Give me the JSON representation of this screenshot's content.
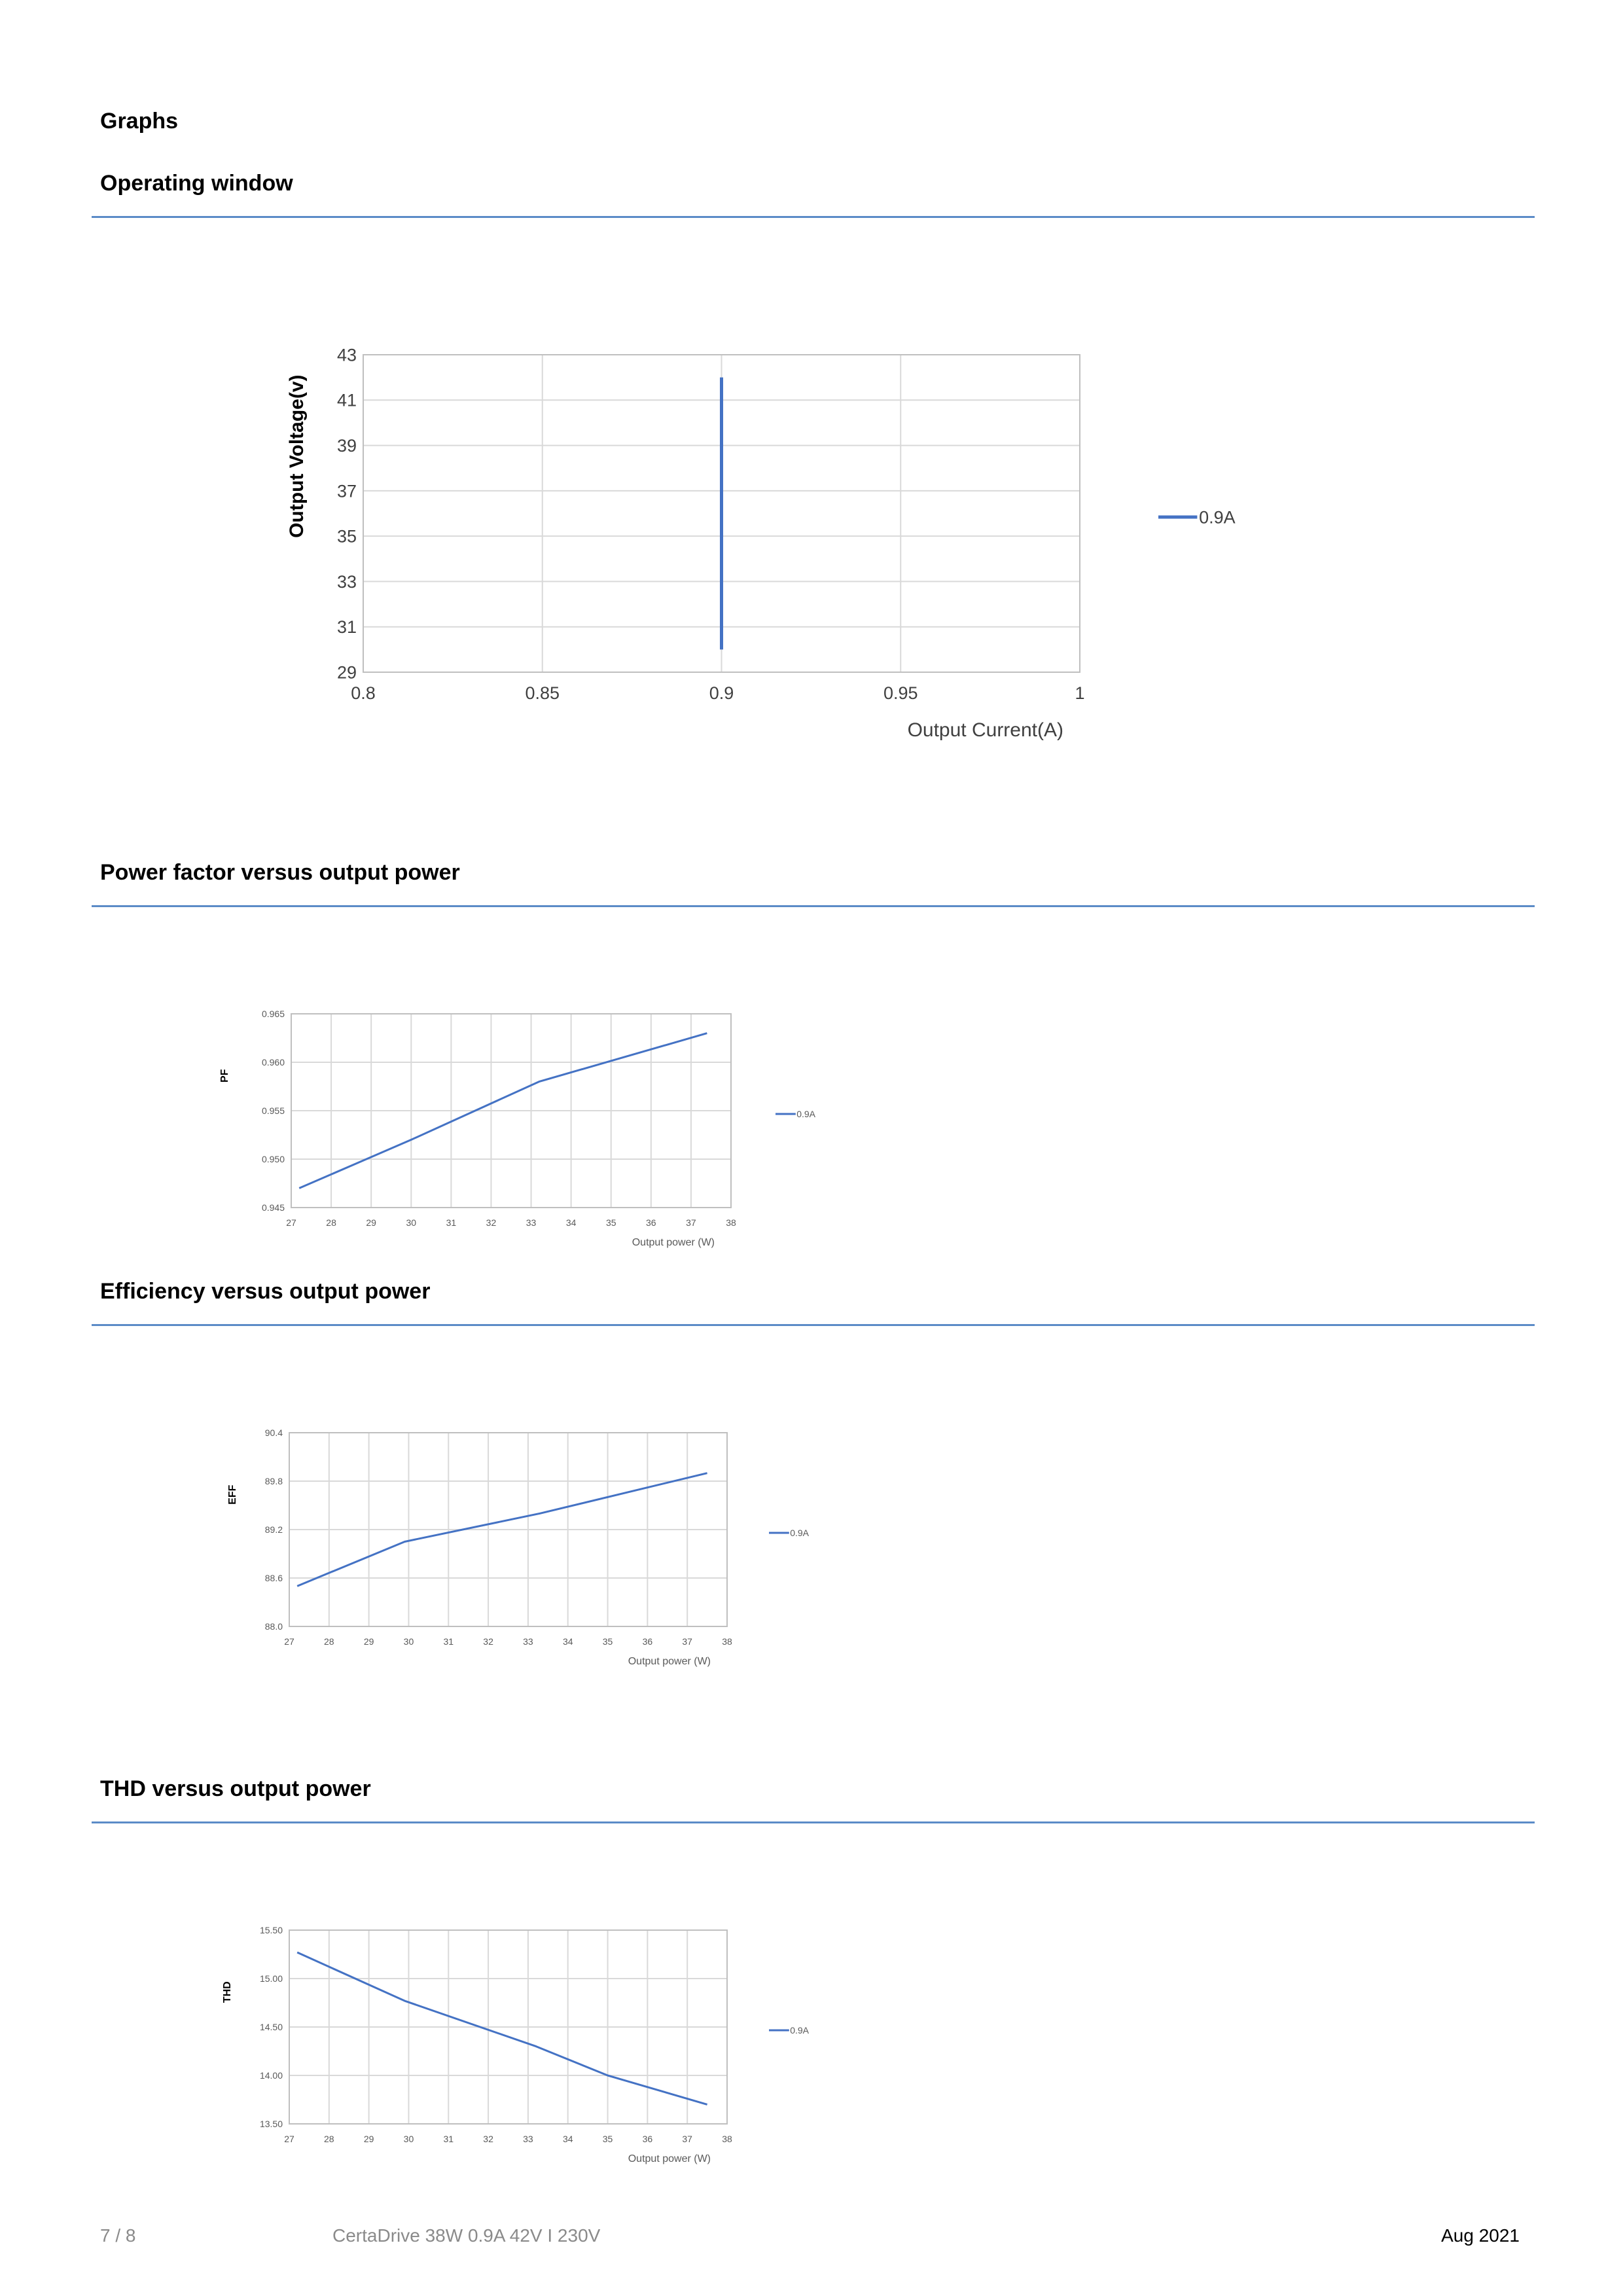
{
  "headings": {
    "graphs": "Graphs",
    "operating_window": "Operating window",
    "power_factor": "Power factor versus output power",
    "efficiency": "Efficiency versus output power",
    "thd": "THD versus output power"
  },
  "footer": {
    "page": "7 / 8",
    "product": "CertaDrive 38W 0.9A 42V I 230V",
    "date": "Aug 2021"
  },
  "colors": {
    "series": "#4472c4",
    "grid": "#d9d9d9",
    "rule": "#5b8bc7"
  },
  "chart_data": [
    {
      "id": "operating",
      "type": "line",
      "xlabel": "Output Current(A)",
      "ylabel": "Output Voltage(v)",
      "xlim": [
        0.8,
        1
      ],
      "ylim": [
        29,
        43
      ],
      "x_ticks": [
        "0.8",
        "0.85",
        "0.9",
        "0.95",
        "1"
      ],
      "x_tick_values": [
        0.8,
        0.85,
        0.9,
        0.95,
        1
      ],
      "y_ticks": [
        "29",
        "31",
        "33",
        "35",
        "37",
        "39",
        "41",
        "43"
      ],
      "y_tick_values": [
        29,
        31,
        33,
        35,
        37,
        39,
        41,
        43
      ],
      "grid": true,
      "legend_position": "right",
      "series": [
        {
          "name": "0.9A",
          "x": [
            0.9,
            0.9
          ],
          "y": [
            30,
            42
          ]
        }
      ]
    },
    {
      "id": "pf",
      "type": "line",
      "xlabel": "Output power (W)",
      "ylabel": "PF",
      "xlim": [
        27,
        38
      ],
      "ylim": [
        0.945,
        0.965
      ],
      "x_ticks": [
        "27",
        "28",
        "29",
        "30",
        "31",
        "32",
        "33",
        "34",
        "35",
        "36",
        "37",
        "38"
      ],
      "x_tick_values": [
        27,
        28,
        29,
        30,
        31,
        32,
        33,
        34,
        35,
        36,
        37,
        38
      ],
      "y_ticks": [
        "0.945",
        "0.950",
        "0.955",
        "0.960",
        "0.965"
      ],
      "y_tick_values": [
        0.945,
        0.95,
        0.955,
        0.96,
        0.965
      ],
      "grid": true,
      "legend_position": "right",
      "series": [
        {
          "name": "0.9A",
          "x": [
            27.2,
            30.0,
            33.2,
            37.4
          ],
          "y": [
            0.947,
            0.952,
            0.958,
            0.963
          ]
        }
      ]
    },
    {
      "id": "eff",
      "type": "line",
      "xlabel": "Output power (W)",
      "ylabel": "EFF",
      "xlim": [
        27,
        38
      ],
      "ylim": [
        88.0,
        90.4
      ],
      "x_ticks": [
        "27",
        "28",
        "29",
        "30",
        "31",
        "32",
        "33",
        "34",
        "35",
        "36",
        "37",
        "38"
      ],
      "x_tick_values": [
        27,
        28,
        29,
        30,
        31,
        32,
        33,
        34,
        35,
        36,
        37,
        38
      ],
      "y_ticks": [
        "88.0",
        "88.6",
        "89.2",
        "89.8",
        "90.4"
      ],
      "y_tick_values": [
        88.0,
        88.6,
        89.2,
        89.8,
        90.4
      ],
      "grid": true,
      "legend_position": "right",
      "series": [
        {
          "name": "0.9A",
          "x": [
            27.2,
            29.9,
            33.3,
            37.5
          ],
          "y": [
            88.5,
            89.05,
            89.4,
            89.9
          ]
        }
      ]
    },
    {
      "id": "thd",
      "type": "line",
      "xlabel": "Output power (W)",
      "ylabel": "THD",
      "xlim": [
        27,
        38
      ],
      "ylim": [
        13.5,
        15.5
      ],
      "x_ticks": [
        "27",
        "28",
        "29",
        "30",
        "31",
        "32",
        "33",
        "34",
        "35",
        "36",
        "37",
        "38"
      ],
      "x_tick_values": [
        27,
        28,
        29,
        30,
        31,
        32,
        33,
        34,
        35,
        36,
        37,
        38
      ],
      "y_ticks": [
        "13.50",
        "14.00",
        "14.50",
        "15.00",
        "15.50"
      ],
      "y_tick_values": [
        13.5,
        14.0,
        14.5,
        15.0,
        15.5
      ],
      "grid": true,
      "legend_position": "right",
      "series": [
        {
          "name": "0.9A",
          "x": [
            27.2,
            29.9,
            33.2,
            35.0,
            37.5
          ],
          "y": [
            15.27,
            14.77,
            14.3,
            14.0,
            13.7
          ]
        }
      ]
    }
  ]
}
